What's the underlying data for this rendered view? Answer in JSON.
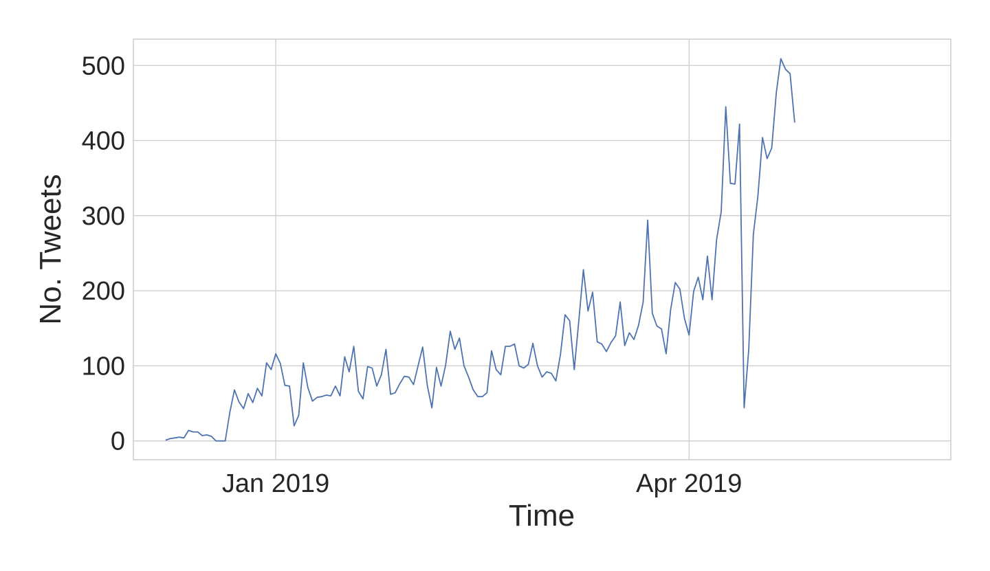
{
  "chart_data": {
    "type": "line",
    "xlabel": "Time",
    "ylabel": "No. Tweets",
    "x_start": "2018-12-08",
    "x_step_days": 1,
    "xlim": [
      "2018-12-01",
      "2019-05-28"
    ],
    "ylim": [
      -25,
      535
    ],
    "y_ticks": [
      0,
      100,
      200,
      300,
      400,
      500
    ],
    "x_ticks": [
      {
        "date": "2019-01-01",
        "label": "Jan 2019"
      },
      {
        "date": "2019-04-01",
        "label": "Apr 2019"
      }
    ],
    "grid": true,
    "legend": "none",
    "colors": {
      "series": "#4c72b0",
      "grid": "#cccccc",
      "text": "#262626"
    },
    "series": [
      {
        "values": [
          1,
          3,
          4,
          5,
          4,
          14,
          12,
          12,
          7,
          8,
          6,
          0,
          0,
          0,
          38,
          68,
          52,
          43,
          63,
          51,
          70,
          60,
          104,
          95,
          116,
          103,
          74,
          73,
          20,
          34,
          104,
          71,
          53,
          58,
          59,
          61,
          60,
          73,
          60,
          112,
          92,
          126,
          66,
          56,
          99,
          97,
          73,
          88,
          122,
          62,
          64,
          76,
          86,
          85,
          75,
          100,
          125,
          74,
          44,
          98,
          73,
          101,
          146,
          122,
          137,
          100,
          85,
          68,
          59,
          59,
          64,
          120,
          95,
          88,
          126,
          126,
          129,
          100,
          97,
          102,
          130,
          100,
          85,
          92,
          90,
          80,
          115,
          168,
          160,
          95,
          160,
          228,
          173,
          198,
          132,
          129,
          119,
          131,
          140,
          185,
          127,
          144,
          135,
          154,
          185,
          294,
          170,
          153,
          149,
          116,
          175,
          211,
          202,
          163,
          141,
          199,
          218,
          188,
          246,
          188,
          268,
          305,
          445,
          343,
          342,
          422,
          44,
          122,
          275,
          326,
          404,
          376,
          390,
          464,
          509,
          495,
          489,
          424
        ]
      }
    ]
  }
}
